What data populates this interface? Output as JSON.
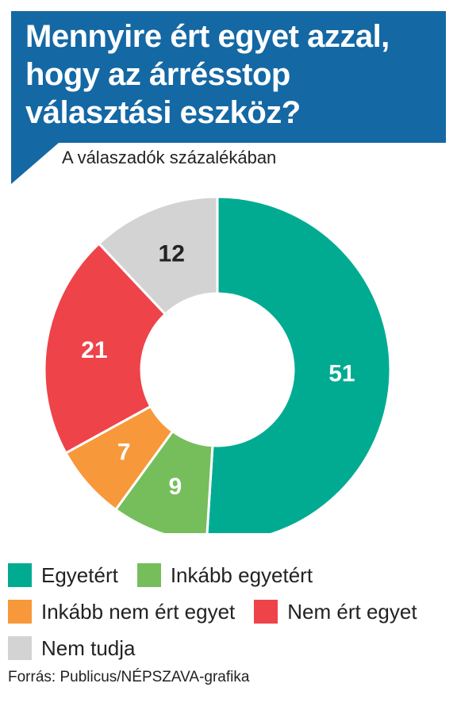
{
  "title": "Mennyire ért egyet azzal, hogy az árrésstop választási eszköz?",
  "subtitle": "A válaszadók százalékában",
  "source": "Forrás: Publicus/NÉPSZAVA-grafika",
  "chart_data": {
    "type": "pie",
    "title": "Mennyire ért egyet azzal, hogy az árrésstop választási eszköz?",
    "subtitle": "A válaszadók százalékában",
    "categories": [
      "Egyetért",
      "Inkább egyetért",
      "Inkább nem ért egyet",
      "Nem ért egyet",
      "Nem tudja"
    ],
    "values": [
      51,
      9,
      7,
      21,
      12
    ],
    "labels": [
      "51",
      "9",
      "7",
      "21",
      "12"
    ],
    "colors": [
      "#00ab92",
      "#76be5c",
      "#f7983a",
      "#ee4349",
      "#d3d3d3"
    ],
    "label_colors": [
      "#ffffff",
      "#ffffff",
      "#ffffff",
      "#ffffff",
      "#222222"
    ],
    "donut": true,
    "legend": "bottom"
  },
  "legend_rows": [
    [
      0,
      1
    ],
    [
      2,
      3
    ],
    [
      4
    ]
  ]
}
